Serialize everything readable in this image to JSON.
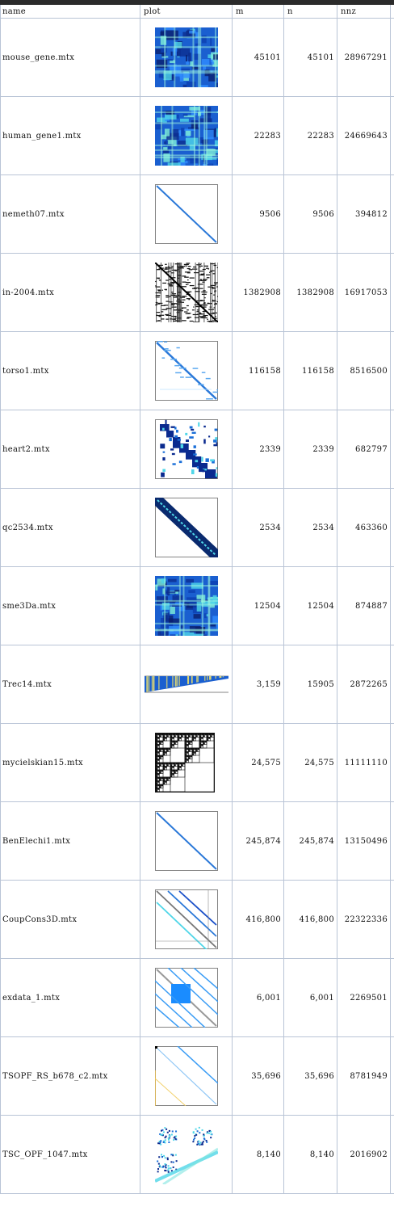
{
  "columns": [
    "name",
    "plot",
    "m",
    "n",
    "nnz"
  ],
  "rows": [
    {
      "name": "mouse_gene.mtx",
      "plot": "dense-blue-icon",
      "m": "45101",
      "n": "45101",
      "nnz": "28967291"
    },
    {
      "name": "human_gene1.mtx",
      "plot": "dense-blue-icon",
      "m": "22283",
      "n": "22283",
      "nnz": "24669643"
    },
    {
      "name": "nemeth07.mtx",
      "plot": "diagonal-band-icon",
      "m": "9506",
      "n": "9506",
      "nnz": "394812"
    },
    {
      "name": "in-2004.mtx",
      "plot": "dense-black-icon",
      "m": "1382908",
      "n": "1382908",
      "nnz": "16917053"
    },
    {
      "name": "torso1.mtx",
      "plot": "sparse-diagonal-icon",
      "m": "116158",
      "n": "116158",
      "nnz": "8516500"
    },
    {
      "name": "heart2.mtx",
      "plot": "block-sparse-icon",
      "m": "2339",
      "n": "2339",
      "nnz": "682797"
    },
    {
      "name": "qc2534.mtx",
      "plot": "wide-band-icon",
      "m": "2534",
      "n": "2534",
      "nnz": "463360"
    },
    {
      "name": "sme3Da.mtx",
      "plot": "dense-blue-icon",
      "m": "12504",
      "n": "12504",
      "nnz": "874887"
    },
    {
      "name": "Trec14.mtx",
      "plot": "rectangular-wedge-icon",
      "m": "3,159",
      "n": "15905",
      "nnz": "2872265"
    },
    {
      "name": "mycielskian15.mtx",
      "plot": "fractal-blocks-icon",
      "m": "24,575",
      "n": "24,575",
      "nnz": "11111110"
    },
    {
      "name": "BenElechi1.mtx",
      "plot": "diagonal-band-icon",
      "m": "245,874",
      "n": "245,874",
      "nnz": "13150496"
    },
    {
      "name": "CoupCons3D.mtx",
      "plot": "multi-diagonal-icon",
      "m": "416,800",
      "n": "416,800",
      "nnz": "22322336"
    },
    {
      "name": "exdata_1.mtx",
      "plot": "block-diagonals-icon",
      "m": "6,001",
      "n": "6,001",
      "nnz": "2269501"
    },
    {
      "name": "TSOPF_RS_b678_c2.mtx",
      "plot": "sparse-lines-icon",
      "m": "35,696",
      "n": "35,696",
      "nnz": "8781949"
    },
    {
      "name": "TSC_OPF_1047.mtx",
      "plot": "corner-blocks-icon",
      "m": "8,140",
      "n": "8,140",
      "nnz": "2016902"
    }
  ],
  "colors": {
    "header_bar": "#2b2b2b",
    "grid": "#b9c4d6",
    "plot_blue": "#1a6fd8",
    "plot_dark": "#0a1f6e",
    "plot_cyan": "#4fd6e8"
  }
}
